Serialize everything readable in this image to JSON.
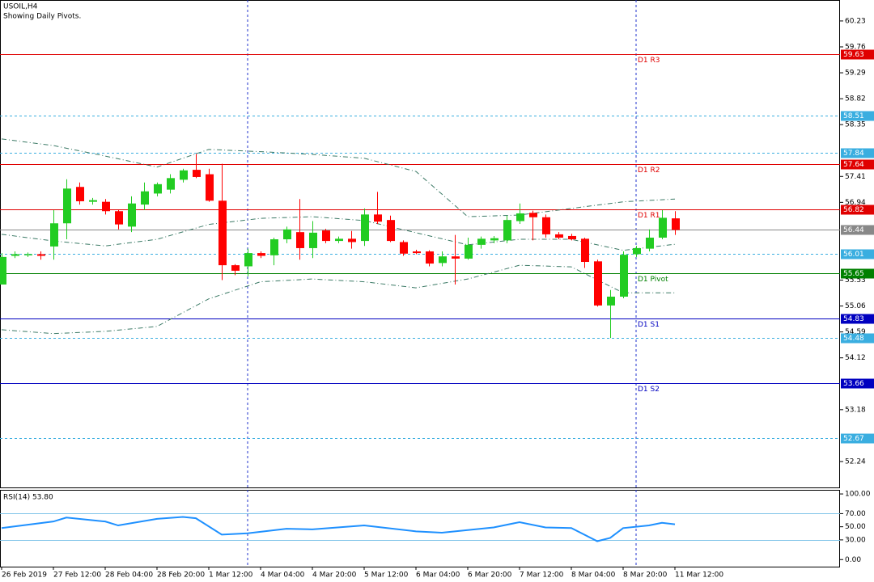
{
  "chart_data": {
    "type": "candlestick",
    "title": "USOIL,H4",
    "subtitle": "Showing Daily Pivots.",
    "categories": [
      "26 Feb 2019",
      null,
      null,
      null,
      "27 Feb 12:00",
      null,
      null,
      null,
      "28 Feb 04:00",
      null,
      null,
      null,
      "28 Feb 20:00",
      null,
      null,
      null,
      "1 Mar 12:00",
      null,
      null,
      null,
      "4 Mar 04:00",
      null,
      null,
      null,
      "4 Mar 20:00",
      null,
      null,
      null,
      "5 Mar 12:00",
      null,
      null,
      null,
      "6 Mar 04:00",
      null,
      null,
      null,
      "6 Mar 20:00",
      null,
      null,
      null,
      "7 Mar 12:00",
      null,
      null,
      null,
      "8 Mar 04:00",
      null,
      null,
      null,
      "8 Mar 20:00",
      null,
      null,
      null,
      "11 Mar 12:00"
    ],
    "open": [
      55.45,
      55.97,
      55.98,
      56.0,
      56.14,
      56.56,
      57.22,
      56.95,
      56.95,
      56.78,
      56.5,
      56.9,
      57.1,
      57.17,
      57.35,
      57.53,
      57.45,
      56.97,
      55.8,
      55.78,
      56.02,
      55.98,
      56.27,
      56.4,
      56.11,
      56.43,
      56.24,
      56.28,
      56.24,
      56.72,
      56.62,
      56.22,
      56.05,
      56.05,
      55.84,
      55.96,
      55.92,
      56.17,
      56.25,
      56.25,
      56.6,
      56.75,
      56.67,
      56.36,
      56.33,
      56.28,
      55.87,
      55.07,
      55.23,
      56.0,
      56.1,
      56.3,
      56.65
    ],
    "high": [
      56.02,
      56.05,
      56.03,
      56.05,
      56.8,
      57.36,
      57.3,
      57.02,
      57.0,
      56.8,
      57.05,
      57.3,
      57.3,
      57.45,
      57.55,
      57.82,
      57.55,
      57.64,
      55.82,
      56.1,
      56.05,
      56.3,
      56.5,
      57.0,
      56.6,
      56.46,
      56.32,
      56.42,
      56.83,
      57.13,
      56.7,
      56.25,
      56.08,
      56.07,
      56.05,
      56.35,
      56.3,
      56.32,
      56.33,
      56.7,
      56.92,
      56.79,
      56.72,
      56.4,
      56.37,
      56.3,
      55.9,
      55.35,
      56.05,
      56.15,
      56.45,
      56.8,
      56.78
    ],
    "low": [
      55.45,
      55.93,
      55.95,
      55.9,
      55.9,
      56.27,
      56.9,
      56.9,
      56.72,
      56.45,
      56.4,
      56.8,
      57.05,
      57.1,
      57.3,
      57.38,
      56.95,
      55.53,
      55.62,
      55.6,
      55.93,
      55.8,
      56.2,
      55.9,
      55.93,
      56.2,
      56.2,
      56.1,
      56.15,
      56.55,
      56.22,
      55.97,
      56.0,
      55.78,
      55.78,
      55.45,
      55.9,
      56.1,
      56.2,
      56.2,
      56.55,
      56.25,
      56.3,
      56.27,
      56.25,
      55.75,
      55.05,
      54.48,
      55.2,
      55.95,
      56.05,
      56.27,
      56.35
    ],
    "close": [
      55.95,
      56.0,
      56.0,
      55.97,
      56.56,
      57.19,
      56.96,
      56.98,
      56.78,
      56.54,
      56.92,
      57.14,
      57.27,
      57.38,
      57.52,
      57.4,
      56.97,
      55.8,
      55.7,
      56.02,
      55.97,
      56.27,
      56.45,
      56.11,
      56.39,
      56.24,
      56.28,
      56.22,
      56.72,
      56.59,
      56.24,
      56.01,
      56.02,
      55.83,
      55.96,
      55.92,
      56.17,
      56.28,
      56.29,
      56.62,
      56.74,
      56.67,
      56.36,
      56.3,
      56.27,
      55.86,
      55.07,
      55.23,
      55.99,
      56.11,
      56.3,
      56.66,
      56.44
    ],
    "up_color": "#22cc22",
    "down_color": "#ff0000",
    "ylim": [
      51.77,
      60.61
    ],
    "yticks": [
      60.23,
      59.76,
      59.29,
      58.82,
      58.35,
      57.41,
      56.94,
      55.53,
      55.06,
      54.59,
      54.12,
      53.18,
      52.24
    ],
    "bands": {
      "color": "#3c7a66",
      "x": [
        0,
        4,
        8,
        12,
        16,
        20,
        24,
        28,
        32,
        36,
        40,
        44,
        48,
        52
      ],
      "upper": [
        58.09,
        57.97,
        57.78,
        57.58,
        57.9,
        57.86,
        57.81,
        57.74,
        57.5,
        56.68,
        56.71,
        56.83,
        56.95,
        57.0
      ],
      "middle": [
        56.36,
        56.24,
        56.15,
        56.27,
        56.54,
        56.65,
        56.68,
        56.61,
        56.39,
        56.17,
        56.27,
        56.27,
        56.07,
        56.18
      ],
      "lower": [
        54.63,
        54.56,
        54.6,
        54.69,
        55.19,
        55.5,
        55.55,
        55.5,
        55.39,
        55.55,
        55.8,
        55.77,
        55.3,
        55.3
      ]
    },
    "levels": [
      {
        "label": "D1 R3",
        "value": 59.63,
        "color": "#e00000",
        "style": "solid"
      },
      {
        "value": 58.51,
        "color": "#3aaee0",
        "style": "dashed"
      },
      {
        "value": 57.84,
        "color": "#3aaee0",
        "style": "dashed"
      },
      {
        "label": "D1 R2",
        "value": 57.64,
        "color": "#e00000",
        "style": "solid"
      },
      {
        "label": "D1 R1",
        "value": 56.82,
        "color": "#e00000",
        "style": "solid"
      },
      {
        "value": 56.44,
        "color": "#888888",
        "style": "solid"
      },
      {
        "value": 56.01,
        "color": "#3aaee0",
        "style": "dashed"
      },
      {
        "label": "D1 Pivot",
        "value": 55.65,
        "color": "#008000",
        "style": "solid"
      },
      {
        "label": "D1 S1",
        "value": 54.83,
        "color": "#0000c0",
        "style": "solid"
      },
      {
        "value": 54.48,
        "color": "#3aaee0",
        "style": "dashed"
      },
      {
        "label": "D1 S2",
        "value": 53.66,
        "color": "#0000c0",
        "style": "solid"
      },
      {
        "value": 52.67,
        "color": "#3aaee0",
        "style": "dashed"
      }
    ],
    "rsi": {
      "label": "RSI(14) 53.80",
      "color": "#1e90ff",
      "x": [
        0,
        4,
        5,
        8,
        9,
        12,
        14,
        15,
        17,
        19,
        22,
        24,
        28,
        32,
        34,
        38,
        40,
        42,
        44,
        46,
        47,
        48,
        50,
        51,
        52
      ],
      "values": [
        48,
        58,
        64,
        58,
        52,
        62,
        65,
        63,
        38,
        40,
        47,
        46,
        52,
        43,
        41,
        49,
        57,
        49,
        48,
        28,
        33,
        48,
        52,
        56,
        53.8
      ],
      "ylim": [
        -12,
        105
      ],
      "yticks": [
        {
          "value": 100,
          "label": "100.00"
        },
        {
          "value": 70,
          "label": "70.00"
        },
        {
          "value": 50,
          "label": "50.00"
        },
        {
          "value": 30,
          "label": "30.00"
        },
        {
          "value": 0,
          "label": "0.00"
        }
      ],
      "levels": [
        70,
        30
      ]
    }
  }
}
